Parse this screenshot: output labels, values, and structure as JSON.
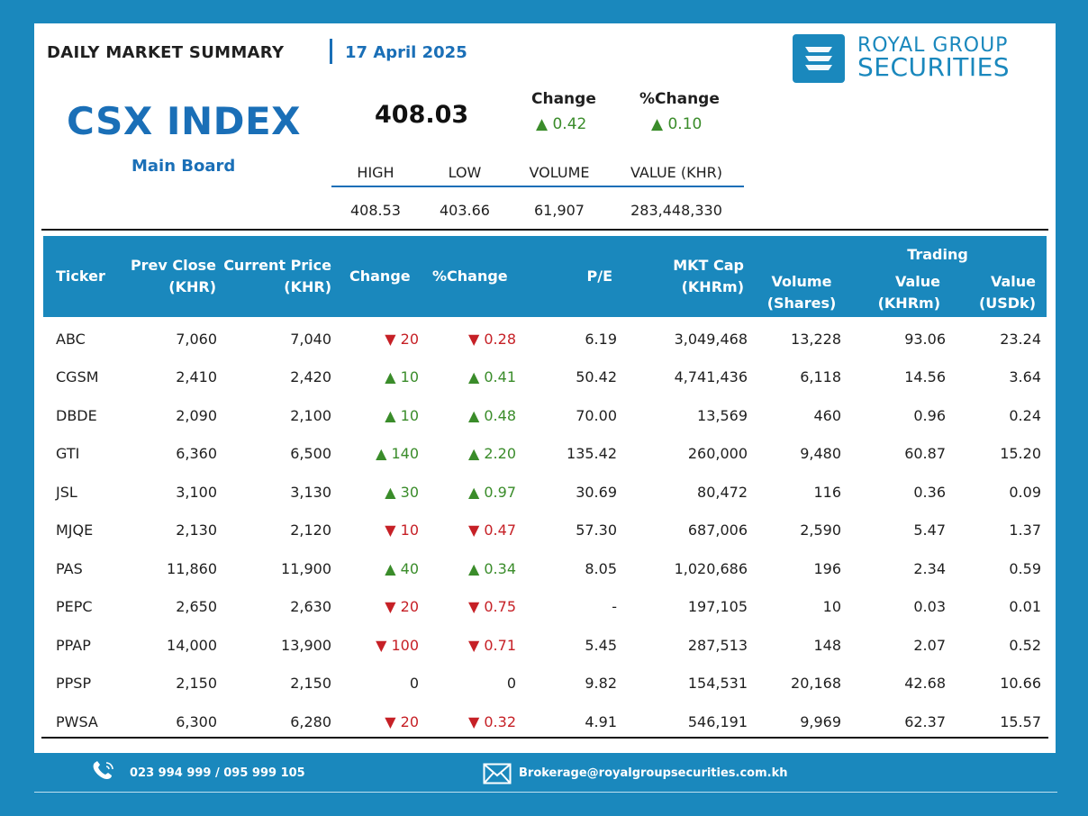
{
  "header": {
    "summary_title": "DAILY MARKET SUMMARY",
    "date": "17 April 2025",
    "logo_line1": "ROYAL GROUP",
    "logo_line2": "SECURITIES",
    "logo_icon": "royal-group-logo-mark"
  },
  "index": {
    "title": "CSX INDEX",
    "board": "Main Board",
    "value": "408.03",
    "change_label": "Change",
    "change_value": "▲ 0.42",
    "pct_change_label": "%Change",
    "pct_change_value": "▲ 0.10",
    "stats_headers": [
      "HIGH",
      "LOW",
      "VOLUME",
      "VALUE (KHR)"
    ],
    "stats_values": [
      "408.53",
      "403.66",
      "61,907",
      "283,448,330"
    ]
  },
  "table": {
    "headers": {
      "ticker": "Ticker",
      "prev_close_1": "Prev Close",
      "prev_close_2": "(KHR)",
      "current_price_1": "Current Price",
      "current_price_2": "(KHR)",
      "change": "Change",
      "pct_change": "%Change",
      "pe": "P/E",
      "mkt_cap_1": "MKT Cap",
      "mkt_cap_2": "(KHRm)",
      "volume_1": "Volume",
      "volume_2": "(Shares)",
      "trading": "Trading",
      "value_khr_1": "Value",
      "value_khr_2": "(KHRm)",
      "value_usd_1": "Value",
      "value_usd_2": "(USDk)"
    },
    "rows": [
      {
        "ticker": "ABC",
        "prev": "7,060",
        "cur": "7,040",
        "chg": "▼ 20",
        "pct": "▼ 0.28",
        "dir": "down",
        "pe": "6.19",
        "cap": "3,049,468",
        "vol": "13,228",
        "vkhr": "93.06",
        "vusd": "23.24"
      },
      {
        "ticker": "CGSM",
        "prev": "2,410",
        "cur": "2,420",
        "chg": "▲ 10",
        "pct": "▲ 0.41",
        "dir": "up",
        "pe": "50.42",
        "cap": "4,741,436",
        "vol": "6,118",
        "vkhr": "14.56",
        "vusd": "3.64"
      },
      {
        "ticker": "DBDE",
        "prev": "2,090",
        "cur": "2,100",
        "chg": "▲ 10",
        "pct": "▲ 0.48",
        "dir": "up",
        "pe": "70.00",
        "cap": "13,569",
        "vol": "460",
        "vkhr": "0.96",
        "vusd": "0.24"
      },
      {
        "ticker": "GTI",
        "prev": "6,360",
        "cur": "6,500",
        "chg": "▲ 140",
        "pct": "▲ 2.20",
        "dir": "up",
        "pe": "135.42",
        "cap": "260,000",
        "vol": "9,480",
        "vkhr": "60.87",
        "vusd": "15.20"
      },
      {
        "ticker": "JSL",
        "prev": "3,100",
        "cur": "3,130",
        "chg": "▲ 30",
        "pct": "▲ 0.97",
        "dir": "up",
        "pe": "30.69",
        "cap": "80,472",
        "vol": "116",
        "vkhr": "0.36",
        "vusd": "0.09"
      },
      {
        "ticker": "MJQE",
        "prev": "2,130",
        "cur": "2,120",
        "chg": "▼ 10",
        "pct": "▼ 0.47",
        "dir": "down",
        "pe": "57.30",
        "cap": "687,006",
        "vol": "2,590",
        "vkhr": "5.47",
        "vusd": "1.37"
      },
      {
        "ticker": "PAS",
        "prev": "11,860",
        "cur": "11,900",
        "chg": "▲ 40",
        "pct": "▲ 0.34",
        "dir": "up",
        "pe": "8.05",
        "cap": "1,020,686",
        "vol": "196",
        "vkhr": "2.34",
        "vusd": "0.59"
      },
      {
        "ticker": "PEPC",
        "prev": "2,650",
        "cur": "2,630",
        "chg": "▼ 20",
        "pct": "▼ 0.75",
        "dir": "down",
        "pe": "-",
        "cap": "197,105",
        "vol": "10",
        "vkhr": "0.03",
        "vusd": "0.01"
      },
      {
        "ticker": "PPAP",
        "prev": "14,000",
        "cur": "13,900",
        "chg": "▼ 100",
        "pct": "▼ 0.71",
        "dir": "down",
        "pe": "5.45",
        "cap": "287,513",
        "vol": "148",
        "vkhr": "2.07",
        "vusd": "0.52"
      },
      {
        "ticker": "PPSP",
        "prev": "2,150",
        "cur": "2,150",
        "chg": "0",
        "pct": "0",
        "dir": "flat",
        "pe": "9.82",
        "cap": "154,531",
        "vol": "20,168",
        "vkhr": "42.68",
        "vusd": "10.66"
      },
      {
        "ticker": "PWSA",
        "prev": "6,300",
        "cur": "6,280",
        "chg": "▼ 20",
        "pct": "▼ 0.32",
        "dir": "down",
        "pe": "4.91",
        "cap": "546,191",
        "vol": "9,969",
        "vkhr": "62.37",
        "vusd": "15.57"
      }
    ]
  },
  "footer": {
    "phone": "023 994 999 / 095 999 105",
    "email": "Brokerage@royalgroupsecurities.com.kh",
    "phone_icon": "phone-icon",
    "email_icon": "mail-icon"
  },
  "colors": {
    "background": "#1a88bd",
    "brand_blue": "#1a6fb7",
    "up": "#3a8c2a",
    "down": "#c62026"
  }
}
